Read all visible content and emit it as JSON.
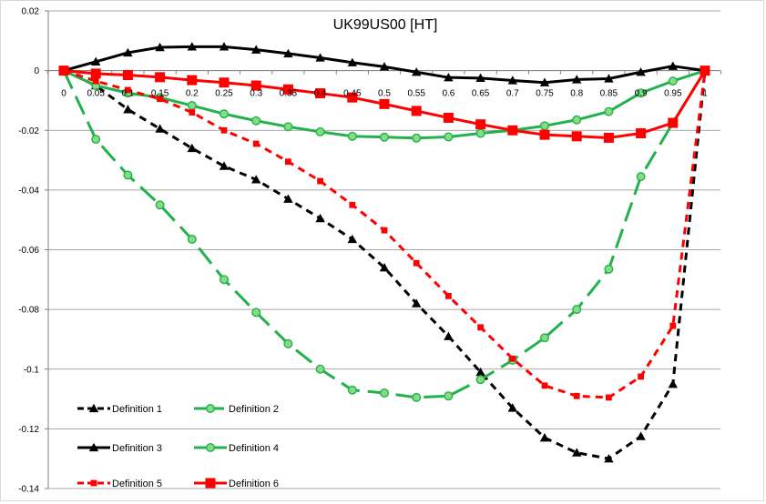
{
  "chart_data": {
    "type": "line",
    "title": "UK99US00 [HT]",
    "x": [
      0,
      0.05,
      0.1,
      0.15,
      0.2,
      0.25,
      0.3,
      0.35,
      0.4,
      0.45,
      0.5,
      0.55,
      0.6,
      0.65,
      0.7,
      0.75,
      0.8,
      0.85,
      0.9,
      0.95,
      1
    ],
    "x_tick_labels": [
      "0",
      "0.05",
      "0.1",
      "0.15",
      "0.2",
      "0.25",
      "0.3",
      "0.35",
      "0.4",
      "0.45",
      "0.5",
      "0.55",
      "0.6",
      "0.65",
      "0.7",
      "0.75",
      "0.8",
      "0.85",
      "0.9",
      "0.95",
      "1"
    ],
    "ylim": [
      -0.14,
      0.02
    ],
    "y_ticks": [
      0.02,
      0,
      -0.02,
      -0.04,
      -0.06,
      -0.08,
      -0.1,
      -0.12,
      -0.14
    ],
    "y_tick_labels": [
      "0.02",
      "0",
      "-0.02",
      "-0.04",
      "-0.06",
      "-0.08",
      "-0.1",
      "-0.12",
      "-0.14"
    ],
    "grid": "horizontal",
    "legend_position": "bottom-left",
    "series": [
      {
        "name": "Definition 1",
        "color": "#000000",
        "dash": "short",
        "marker": "triangle",
        "values": [
          0,
          -0.005,
          -0.013,
          -0.0195,
          -0.026,
          -0.032,
          -0.0365,
          -0.043,
          -0.0495,
          -0.0565,
          -0.066,
          -0.078,
          -0.089,
          -0.101,
          -0.113,
          -0.123,
          -0.128,
          -0.13,
          -0.1225,
          -0.105,
          0
        ]
      },
      {
        "name": "Definition 2",
        "color": "#22b14c",
        "dash": "long",
        "marker": "circle",
        "values": [
          0,
          -0.023,
          -0.035,
          -0.045,
          -0.0565,
          -0.07,
          -0.081,
          -0.0915,
          -0.1,
          -0.107,
          -0.108,
          -0.1095,
          -0.109,
          -0.1035,
          -0.097,
          -0.0895,
          -0.08,
          -0.0665,
          -0.0355,
          -0.0175,
          0
        ]
      },
      {
        "name": "Definition 3",
        "color": "#000000",
        "dash": "solid",
        "marker": "triangle",
        "values": [
          0,
          0.003,
          0.006,
          0.0078,
          0.008,
          0.008,
          0.007,
          0.0057,
          0.0043,
          0.0027,
          0.0013,
          -0.0005,
          -0.0023,
          -0.0025,
          -0.0033,
          -0.004,
          -0.003,
          -0.0027,
          -0.0005,
          0.0015,
          0
        ]
      },
      {
        "name": "Definition 4",
        "color": "#22b14c",
        "dash": "solid",
        "marker": "circle",
        "values": [
          0,
          -0.005,
          -0.0075,
          -0.009,
          -0.0117,
          -0.0145,
          -0.0168,
          -0.0188,
          -0.0205,
          -0.022,
          -0.0223,
          -0.0226,
          -0.0222,
          -0.021,
          -0.02,
          -0.0185,
          -0.0165,
          -0.0137,
          -0.0075,
          -0.0035,
          0
        ]
      },
      {
        "name": "Definition 5",
        "color": "#ff0000",
        "dash": "short",
        "marker": "square-small",
        "values": [
          0,
          -0.0035,
          -0.0065,
          -0.0095,
          -0.014,
          -0.02,
          -0.0245,
          -0.0305,
          -0.037,
          -0.045,
          -0.0535,
          -0.0645,
          -0.0755,
          -0.086,
          -0.0965,
          -0.1055,
          -0.109,
          -0.1095,
          -0.1025,
          -0.0855,
          0
        ]
      },
      {
        "name": "Definition 6",
        "color": "#ff0000",
        "dash": "solid",
        "marker": "square",
        "values": [
          0,
          -0.001,
          -0.0015,
          -0.0022,
          -0.0032,
          -0.004,
          -0.005,
          -0.0063,
          -0.0076,
          -0.009,
          -0.0112,
          -0.0135,
          -0.0158,
          -0.018,
          -0.02,
          -0.0215,
          -0.022,
          -0.0225,
          -0.021,
          -0.0175,
          0
        ]
      }
    ]
  }
}
